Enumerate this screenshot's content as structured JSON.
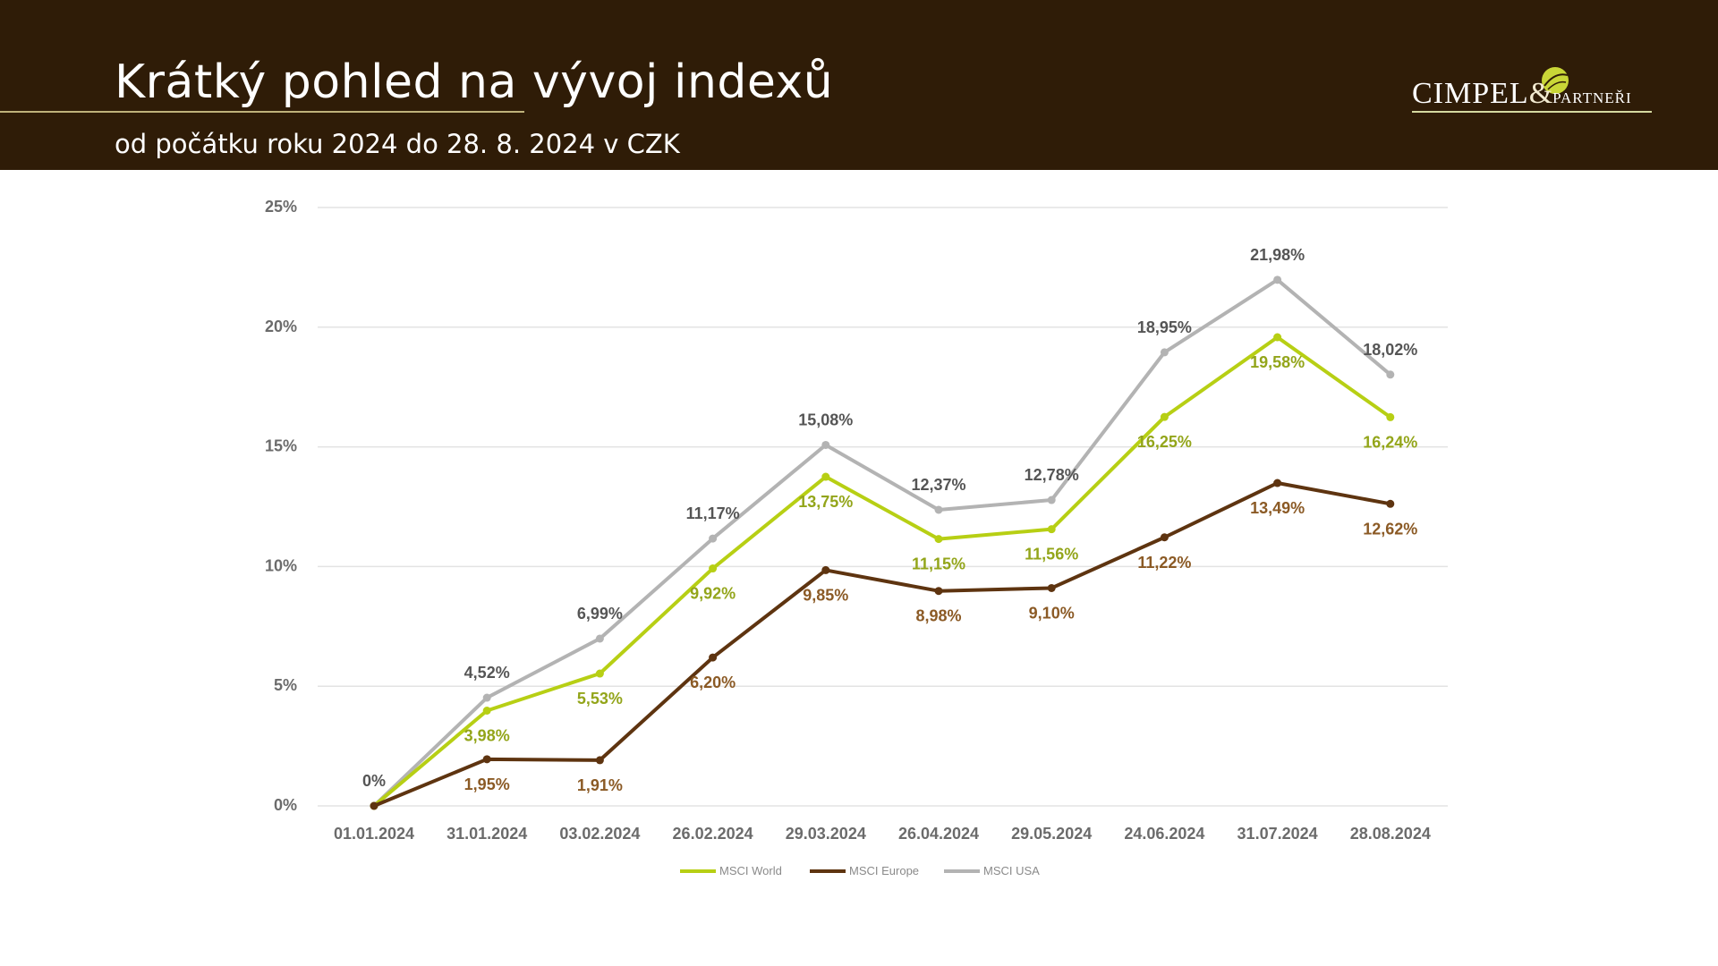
{
  "header": {
    "title": "Krátký pohled na vývoj indexů",
    "subtitle": "od počátku roku 2024  do 28. 8. 2024 v CZK"
  },
  "logo": {
    "main": "CIMPEL",
    "amp": "&",
    "sub": "PARTNEŘI"
  },
  "colors": {
    "header_bg": "#2f1c07",
    "world": "#b7cf14",
    "europe": "#5e3410",
    "usa": "#b3b3b3"
  },
  "chart_data": {
    "type": "line",
    "title": "",
    "xlabel": "",
    "ylabel": "",
    "categories": [
      "01.01.2024",
      "31.01.2024",
      "03.02.2024",
      "26.02.2024",
      "29.03.2024",
      "26.04.2024",
      "29.05.2024",
      "24.06.2024",
      "31.07.2024",
      "28.08.2024"
    ],
    "ylim": [
      0,
      25
    ],
    "yticks": [
      0,
      5,
      10,
      15,
      20,
      25
    ],
    "ytick_labels": [
      "0%",
      "5%",
      "10%",
      "15%",
      "20%",
      "25%"
    ],
    "grid": true,
    "legend_position": "bottom",
    "series": [
      {
        "key": "world",
        "name": "MSCI World",
        "color": "#b7cf14",
        "label_color": "#93a51a",
        "values": [
          0,
          3.98,
          5.53,
          9.92,
          13.75,
          11.15,
          11.56,
          16.25,
          19.58,
          16.24
        ],
        "labels": [
          "",
          "3,98%",
          "5,53%",
          "9,92%",
          "13,75%",
          "11,15%",
          "11,56%",
          "16,25%",
          "19,58%",
          "16,24%"
        ]
      },
      {
        "key": "europe",
        "name": "MSCI Europe",
        "color": "#5e3410",
        "label_color": "#8b5a25",
        "values": [
          0,
          1.95,
          1.91,
          6.2,
          9.85,
          8.98,
          9.1,
          11.22,
          13.49,
          12.62
        ],
        "labels": [
          "",
          "1,95%",
          "1,91%",
          "6,20%",
          "9,85%",
          "8,98%",
          "9,10%",
          "11,22%",
          "13,49%",
          "12,62%"
        ]
      },
      {
        "key": "usa",
        "name": "MSCI USA",
        "color": "#b3b3b3",
        "label_color": "#555555",
        "values": [
          0,
          4.52,
          6.99,
          11.17,
          15.08,
          12.37,
          12.78,
          18.95,
          21.98,
          18.02
        ],
        "labels": [
          "0%",
          "4,52%",
          "6,99%",
          "11,17%",
          "15,08%",
          "12,37%",
          "12,78%",
          "18,95%",
          "21,98%",
          "18,02%"
        ]
      }
    ]
  }
}
